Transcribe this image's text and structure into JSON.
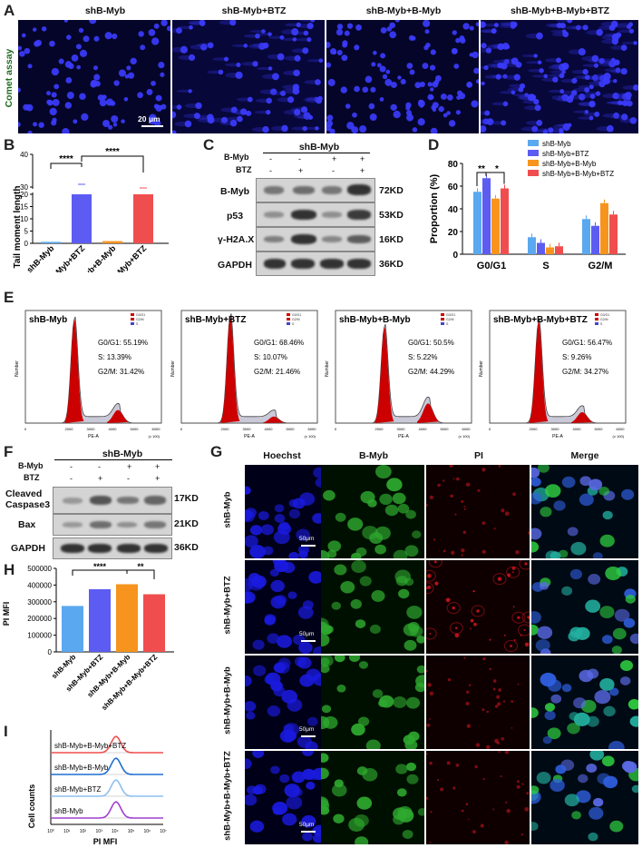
{
  "panels": {
    "A": {
      "letter": "A",
      "side_label": "Comet assay",
      "groups": [
        "shB-Myb",
        "shB-Myb+BTZ",
        "shB-Myb+B-Myb",
        "shB-Myb+B-Myb+BTZ"
      ],
      "scale": "20 μm"
    },
    "B": {
      "letter": "B",
      "ylabel": "Tail moment length",
      "sig1": "****",
      "sig2": "****",
      "yticks": [
        "0",
        "5",
        "10",
        "15",
        "20",
        "30",
        "40"
      ]
    },
    "C": {
      "letter": "C",
      "header": "shB-Myb",
      "row_bmyb": "B-Myb",
      "row_btz": "BTZ",
      "bmyb_signs": [
        "-",
        "-",
        "+",
        "+"
      ],
      "btz_signs": [
        "-",
        "+",
        "-",
        "+"
      ],
      "proteins": [
        "B-Myb",
        "p53",
        "γ-H2A.X",
        "GAPDH"
      ],
      "sizes": [
        "72KD",
        "53KD",
        "16KD",
        "36KD"
      ]
    },
    "D": {
      "letter": "D",
      "sig1": "**",
      "sig2": "*"
    },
    "E": {
      "letter": "E",
      "xaxis": "PE-A",
      "xunit": "(x 100)",
      "yaxis": "Number",
      "legend": [
        "G0/G1",
        "G2/M",
        "S"
      ],
      "xticks": [
        "0",
        "2000",
        "3000",
        "4000",
        "5000",
        "6000"
      ],
      "plots": [
        {
          "title": "shB-Myb",
          "g0g1": "G0/G1: 55.19%",
          "s": "S: 13.39%",
          "g2m": "G2/M: 31.42%"
        },
        {
          "title": "shB-Myb+BTZ",
          "g0g1": "G0/G1: 68.46%",
          "s": "S: 10.07%",
          "g2m": "G2/M: 21.46%"
        },
        {
          "title": "shB-Myb+B-Myb",
          "g0g1": "G0/G1: 50.5%",
          "s": "S: 5.22%",
          "g2m": "G2/M: 44.29%"
        },
        {
          "title": "shB-Myb+B-Myb+BTZ",
          "g0g1": "G0/G1: 56.47%",
          "s": "S: 9.26%",
          "g2m": "G2/M: 34.27%"
        }
      ]
    },
    "F": {
      "letter": "F",
      "header": "shB-Myb",
      "row_bmyb": "B-Myb",
      "row_btz": "BTZ",
      "bmyb_signs": [
        "-",
        "-",
        "+",
        "+"
      ],
      "btz_signs": [
        "-",
        "+",
        "-",
        "+"
      ],
      "proteins": [
        "Cleaved Caspase3",
        "Bax",
        "GAPDH"
      ],
      "sizes": [
        "17KD",
        "21KD",
        "36KD"
      ]
    },
    "G": {
      "letter": "G",
      "columns": [
        "Hoechst",
        "B-Myb",
        "PI",
        "Merge"
      ],
      "rows": [
        "shB-Myb",
        "shB-Myb+BTZ",
        "shB-Myb+B-Myb",
        "shB-Myb+B-Myb+BTZ"
      ],
      "scale": "50μm"
    },
    "H": {
      "letter": "H",
      "ylabel": "PI MFI",
      "sig1": "****",
      "sig2": "**"
    },
    "I": {
      "letter": "I",
      "xlabel": "PI MFI",
      "ylabel": "Cell counts",
      "traces": [
        "shB-Myb+B-Myb+BTZ",
        "shB-Myb+B-Myb",
        "shB-Myb+BTZ",
        "shB-Myb"
      ],
      "xticks": [
        "10⁰",
        "10¹",
        "10²",
        "10³",
        "10⁴",
        "10⁵",
        "10⁶",
        "10⁷"
      ]
    }
  },
  "colors": {
    "shB-Myb": "#5aa8ef",
    "shB-Myb+BTZ": "#5c5cf2",
    "shB-Myb+B-Myb": "#f7941d",
    "shB-Myb+B-Myb+BTZ": "#f04e4e",
    "hoechst": "#1a1ae0",
    "bmyb_fluor": "#2ea82e",
    "pi_fluor": "#c8141e",
    "flow_red": "#cc0000",
    "flow_gray": "#c9c9d8"
  },
  "chart_data": [
    {
      "id": "B",
      "type": "bar",
      "categories": [
        "shB-Myb",
        "shB-Myb+BTZ",
        "shB-Myb+B-Myb",
        "shB-Myb+B-Myb+BTZ"
      ],
      "values": [
        0.6,
        30,
        0.9,
        21
      ],
      "ylabel": "Tail moment length",
      "ylim": [
        0,
        40
      ],
      "axis_break": [
        20,
        30
      ]
    },
    {
      "id": "D",
      "type": "bar",
      "categories": [
        "G0/G1",
        "S",
        "G2/M"
      ],
      "series": [
        {
          "name": "shB-Myb",
          "values": [
            55,
            15,
            31
          ]
        },
        {
          "name": "shB-Myb+BTZ",
          "values": [
            67,
            10,
            25
          ]
        },
        {
          "name": "shB-Myb+B-Myb",
          "values": [
            49,
            6,
            45
          ]
        },
        {
          "name": "shB-Myb+B-Myb+BTZ",
          "values": [
            58,
            7,
            35
          ]
        }
      ],
      "ylabel": "Proportion (%)",
      "ylim": [
        0,
        80
      ],
      "yticks": [
        0,
        20,
        40,
        60,
        80
      ],
      "legend_position": "top-right"
    },
    {
      "id": "H",
      "type": "bar",
      "categories": [
        "shB-Myb",
        "shB-Myb+BTZ",
        "shB-Myb+B-Myb",
        "shB-Myb+B-Myb+BTZ"
      ],
      "values": [
        275000,
        375000,
        405000,
        345000
      ],
      "ylabel": "PI MFI",
      "ylim": [
        0,
        500000
      ],
      "yticks": [
        0,
        100000,
        200000,
        300000,
        400000,
        500000
      ],
      "ytick_labels": [
        "0",
        "100000",
        "200000",
        "300000",
        "400000",
        "500000"
      ]
    }
  ]
}
